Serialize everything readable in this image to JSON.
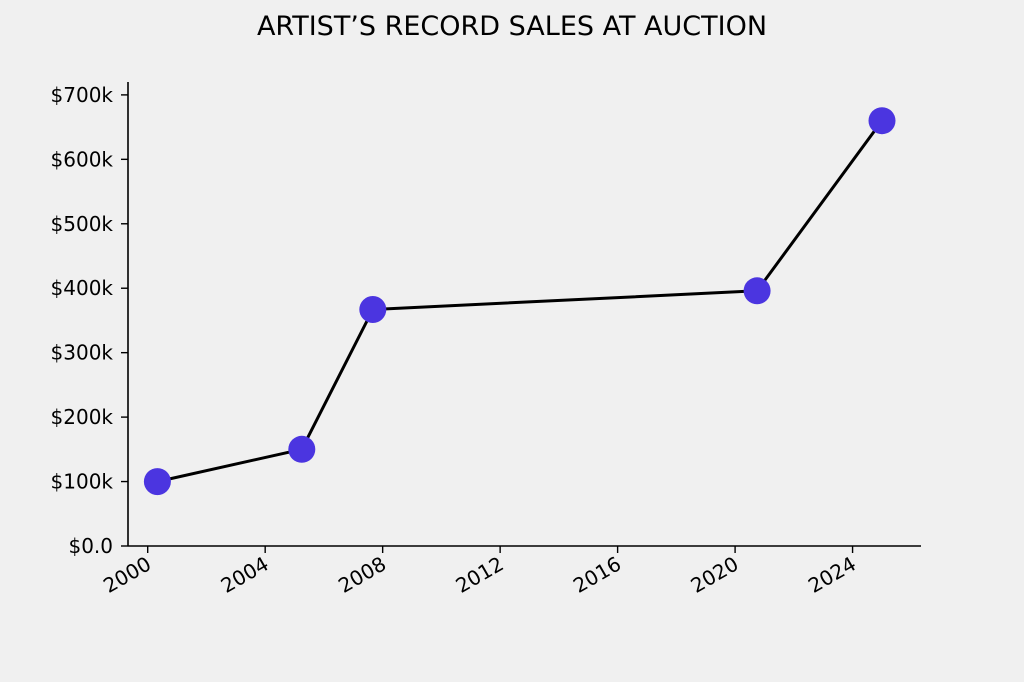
{
  "chart_data": {
    "type": "line",
    "title": "ARTIST’S RECORD SALES AT AUCTION",
    "xlabel": "",
    "ylabel": "",
    "x_axis": {
      "kind": "date",
      "range": [
        "1999-05-01",
        "2026-05-01"
      ],
      "ticks": [
        "2000",
        "2004",
        "2008",
        "2012",
        "2016",
        "2020",
        "2024"
      ]
    },
    "y_axis": {
      "range": [
        0,
        720000
      ],
      "tick_values": [
        0,
        100000,
        200000,
        300000,
        400000,
        500000,
        600000,
        700000
      ],
      "tick_labels": [
        "$0.0",
        "$100k",
        "$200k",
        "$300k",
        "$400k",
        "$500k",
        "$600k",
        "$700k"
      ]
    },
    "series": [
      {
        "x": [
          "2000-05-01",
          "2005-04-01",
          "2007-09-01",
          "2020-10-01",
          "2025-01-01"
        ],
        "values": [
          100000,
          150000,
          367000,
          396000,
          660000
        ]
      }
    ],
    "grid": false,
    "legend": "none",
    "colors": {
      "background": "#f0f0f0",
      "line": "#000000",
      "marker": "#4b35e0",
      "axis": "#000000"
    }
  }
}
